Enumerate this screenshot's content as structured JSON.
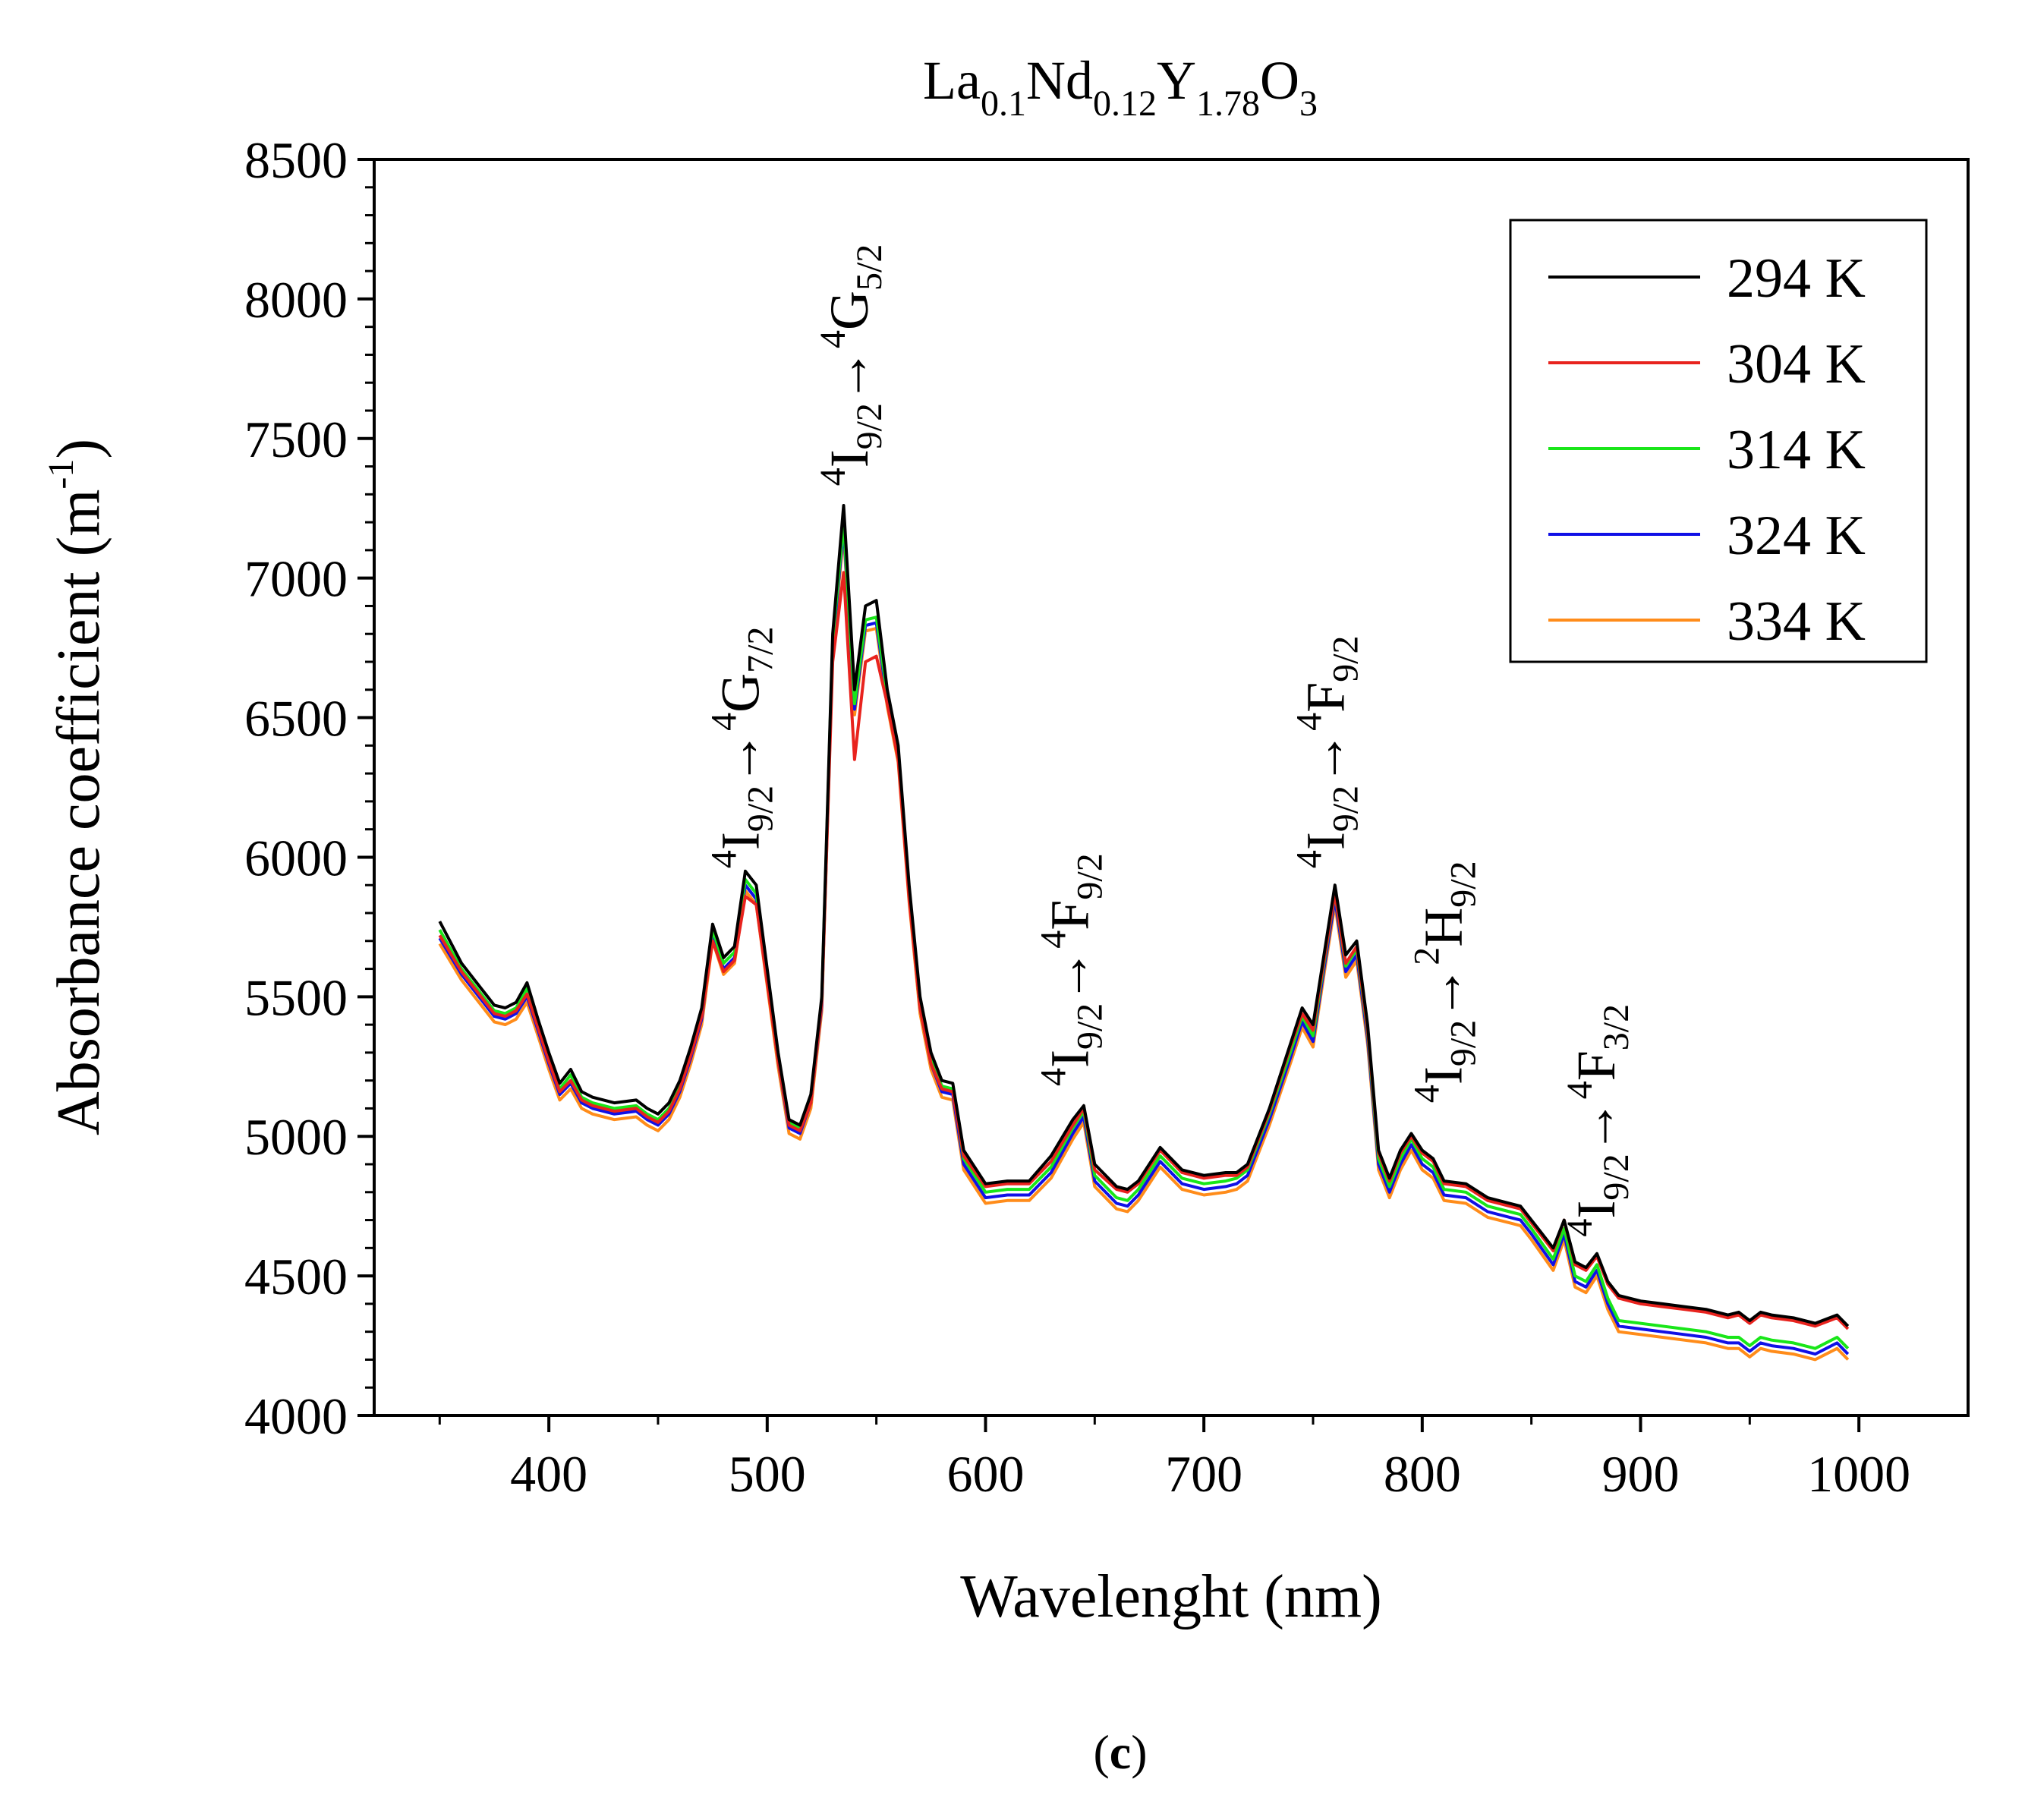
{
  "chart_data": {
    "type": "line",
    "title": {
      "base_parts": [
        [
          "La",
          "0.1"
        ],
        [
          "Nd",
          "0.12"
        ],
        [
          "Y",
          "1.78"
        ],
        [
          "O",
          "3"
        ]
      ]
    },
    "xlabel": "Wavelenght (nm)",
    "ylabel": "Absorbance coefficient (m",
    "ylabel_sup": "-1",
    "ylabel_close": ")",
    "xlim": [
      320,
      1050
    ],
    "ylim": [
      4000,
      8500
    ],
    "xticks": [
      400,
      500,
      600,
      700,
      800,
      900,
      1000
    ],
    "yticks": [
      4000,
      4500,
      5000,
      5500,
      6000,
      6500,
      7000,
      7500,
      8000,
      8500
    ],
    "legend_position": "top-right",
    "x": [
      350,
      360,
      370,
      375,
      380,
      385,
      390,
      395,
      400,
      405,
      410,
      415,
      420,
      430,
      440,
      445,
      450,
      455,
      460,
      465,
      470,
      475,
      480,
      485,
      490,
      495,
      500,
      505,
      510,
      515,
      520,
      525,
      530,
      535,
      540,
      545,
      550,
      555,
      560,
      565,
      570,
      575,
      580,
      585,
      590,
      600,
      610,
      620,
      630,
      640,
      645,
      650,
      660,
      665,
      670,
      680,
      690,
      700,
      710,
      715,
      720,
      730,
      740,
      745,
      750,
      755,
      760,
      765,
      770,
      775,
      780,
      785,
      790,
      795,
      800,
      805,
      810,
      820,
      830,
      840,
      845,
      850,
      860,
      865,
      870,
      875,
      880,
      885,
      890,
      900,
      910,
      920,
      930,
      940,
      945,
      950,
      955,
      960,
      970,
      980,
      990,
      995
    ],
    "series": [
      {
        "name": "294 K",
        "color": "#000000",
        "values": [
          5770,
          5620,
          5520,
          5470,
          5460,
          5480,
          5550,
          5420,
          5300,
          5190,
          5240,
          5160,
          5140,
          5120,
          5130,
          5100,
          5080,
          5120,
          5200,
          5320,
          5460,
          5760,
          5640,
          5680,
          5950,
          5900,
          5600,
          5300,
          5060,
          5040,
          5150,
          5500,
          6800,
          7260,
          6600,
          6900,
          6920,
          6600,
          6400,
          5900,
          5500,
          5300,
          5200,
          5190,
          4950,
          4830,
          4840,
          4840,
          4930,
          5060,
          5110,
          4900,
          4820,
          4810,
          4840,
          4960,
          4880,
          4860,
          4870,
          4870,
          4900,
          5100,
          5340,
          5460,
          5400,
          5650,
          5900,
          5650,
          5700,
          5400,
          4950,
          4850,
          4950,
          5010,
          4950,
          4920,
          4840,
          4830,
          4780,
          4760,
          4750,
          4700,
          4600,
          4700,
          4550,
          4530,
          4580,
          4480,
          4430,
          4410,
          4400,
          4390,
          4380,
          4360,
          4370,
          4340,
          4370,
          4360,
          4350,
          4330,
          4360,
          4320
        ]
      },
      {
        "name": "304 K",
        "color": "#e8231e",
        "values": [
          5720,
          5590,
          5490,
          5440,
          5430,
          5450,
          5510,
          5390,
          5270,
          5160,
          5200,
          5130,
          5110,
          5090,
          5100,
          5070,
          5050,
          5090,
          5170,
          5290,
          5430,
          5700,
          5590,
          5630,
          5860,
          5830,
          5550,
          5270,
          5040,
          5020,
          5120,
          5480,
          6700,
          7020,
          6350,
          6700,
          6720,
          6550,
          6350,
          5850,
          5460,
          5260,
          5170,
          5160,
          4930,
          4820,
          4830,
          4830,
          4910,
          5040,
          5100,
          4880,
          4810,
          4800,
          4830,
          4950,
          4870,
          4850,
          4860,
          4860,
          4890,
          5090,
          5330,
          5440,
          5380,
          5630,
          5870,
          5620,
          5680,
          5380,
          4940,
          4840,
          4940,
          5000,
          4940,
          4910,
          4830,
          4820,
          4770,
          4750,
          4740,
          4690,
          4590,
          4700,
          4540,
          4520,
          4570,
          4470,
          4420,
          4400,
          4390,
          4380,
          4370,
          4350,
          4360,
          4330,
          4360,
          4350,
          4340,
          4320,
          4350,
          4310
        ]
      },
      {
        "name": "314 K",
        "color": "#19e619",
        "values": [
          5740,
          5600,
          5500,
          5450,
          5440,
          5460,
          5530,
          5400,
          5280,
          5170,
          5220,
          5140,
          5120,
          5100,
          5110,
          5080,
          5060,
          5100,
          5180,
          5300,
          5440,
          5740,
          5620,
          5660,
          5920,
          5870,
          5580,
          5290,
          5050,
          5030,
          5140,
          5490,
          6780,
          7200,
          6550,
          6850,
          6860,
          6580,
          6380,
          5880,
          5480,
          5280,
          5180,
          5170,
          4920,
          4800,
          4810,
          4810,
          4890,
          5030,
          5090,
          4860,
          4780,
          4770,
          4810,
          4930,
          4850,
          4830,
          4840,
          4850,
          4880,
          5080,
          5310,
          5430,
          5360,
          5620,
          5870,
          5610,
          5670,
          5370,
          4920,
          4820,
          4920,
          4990,
          4920,
          4890,
          4810,
          4800,
          4750,
          4730,
          4720,
          4670,
          4560,
          4670,
          4500,
          4480,
          4540,
          4420,
          4340,
          4330,
          4320,
          4310,
          4300,
          4280,
          4280,
          4250,
          4280,
          4270,
          4260,
          4240,
          4280,
          4240
        ]
      },
      {
        "name": "324 K",
        "color": "#1010e6",
        "values": [
          5710,
          5580,
          5480,
          5430,
          5420,
          5440,
          5500,
          5380,
          5260,
          5150,
          5190,
          5120,
          5100,
          5080,
          5090,
          5060,
          5040,
          5080,
          5160,
          5280,
          5420,
          5720,
          5600,
          5640,
          5900,
          5850,
          5560,
          5270,
          5030,
          5010,
          5120,
          5470,
          6760,
          7180,
          6530,
          6830,
          6840,
          6560,
          6360,
          5860,
          5460,
          5260,
          5160,
          5150,
          4900,
          4780,
          4790,
          4790,
          4870,
          5010,
          5070,
          4840,
          4760,
          4750,
          4790,
          4910,
          4830,
          4810,
          4820,
          4830,
          4860,
          5060,
          5290,
          5410,
          5340,
          5600,
          5850,
          5590,
          5650,
          5350,
          4900,
          4800,
          4900,
          4970,
          4900,
          4870,
          4790,
          4780,
          4730,
          4710,
          4700,
          4650,
          4540,
          4650,
          4480,
          4460,
          4520,
          4400,
          4320,
          4310,
          4300,
          4290,
          4280,
          4260,
          4260,
          4230,
          4260,
          4250,
          4240,
          4220,
          4260,
          4220
        ]
      },
      {
        "name": "334 K",
        "color": "#ff8c1a",
        "values": [
          5690,
          5560,
          5460,
          5410,
          5400,
          5420,
          5480,
          5360,
          5240,
          5130,
          5170,
          5100,
          5080,
          5060,
          5070,
          5040,
          5020,
          5060,
          5140,
          5260,
          5400,
          5700,
          5580,
          5620,
          5880,
          5830,
          5540,
          5250,
          5010,
          4990,
          5100,
          5450,
          6740,
          7160,
          6510,
          6810,
          6820,
          6540,
          6340,
          5840,
          5440,
          5240,
          5140,
          5130,
          4880,
          4760,
          4770,
          4770,
          4850,
          4990,
          5050,
          4820,
          4740,
          4730,
          4770,
          4890,
          4810,
          4790,
          4800,
          4810,
          4840,
          5040,
          5270,
          5390,
          5320,
          5580,
          5830,
          5570,
          5630,
          5330,
          4880,
          4780,
          4880,
          4950,
          4880,
          4850,
          4770,
          4760,
          4710,
          4690,
          4680,
          4630,
          4520,
          4630,
          4460,
          4440,
          4500,
          4380,
          4300,
          4290,
          4280,
          4270,
          4260,
          4240,
          4240,
          4210,
          4240,
          4230,
          4220,
          4200,
          4240,
          4200
        ]
      }
    ],
    "annotations": [
      {
        "id": "g72",
        "x": 496,
        "y": 5960,
        "lower": "I",
        "lower_sub": "9/2",
        "upper": "G",
        "upper_sub": "7/2",
        "sup": "4",
        "upper_sup": "4"
      },
      {
        "id": "g52",
        "x": 546,
        "y": 7330,
        "lower": "I",
        "lower_sub": "9/2",
        "upper": "G",
        "upper_sub": "5/2",
        "sup": "4",
        "upper_sup": "4"
      },
      {
        "id": "f92a",
        "x": 647,
        "y": 5180,
        "lower": "I",
        "lower_sub": "9/2",
        "upper": "F",
        "upper_sub": "9/2",
        "sup": "4",
        "upper_sup": "4"
      },
      {
        "id": "f92b",
        "x": 764,
        "y": 5960,
        "lower": "I",
        "lower_sub": "9/2",
        "upper": "F",
        "upper_sub": "9/2",
        "sup": "4",
        "upper_sup": "4"
      },
      {
        "id": "h92",
        "x": 818,
        "y": 5120,
        "lower": "I",
        "lower_sub": "9/2",
        "upper": "H",
        "upper_sub": "9/2",
        "sup": "4",
        "upper_sup": "2"
      },
      {
        "id": "f32",
        "x": 888,
        "y": 4640,
        "lower": "I",
        "lower_sub": "9/2",
        "upper": "F",
        "upper_sub": "3/2",
        "sup": "4",
        "upper_sup": "4"
      }
    ],
    "arrow": "→"
  },
  "caption": "(c)",
  "caption_open": "(",
  "caption_letter": "c",
  "caption_close": ")"
}
